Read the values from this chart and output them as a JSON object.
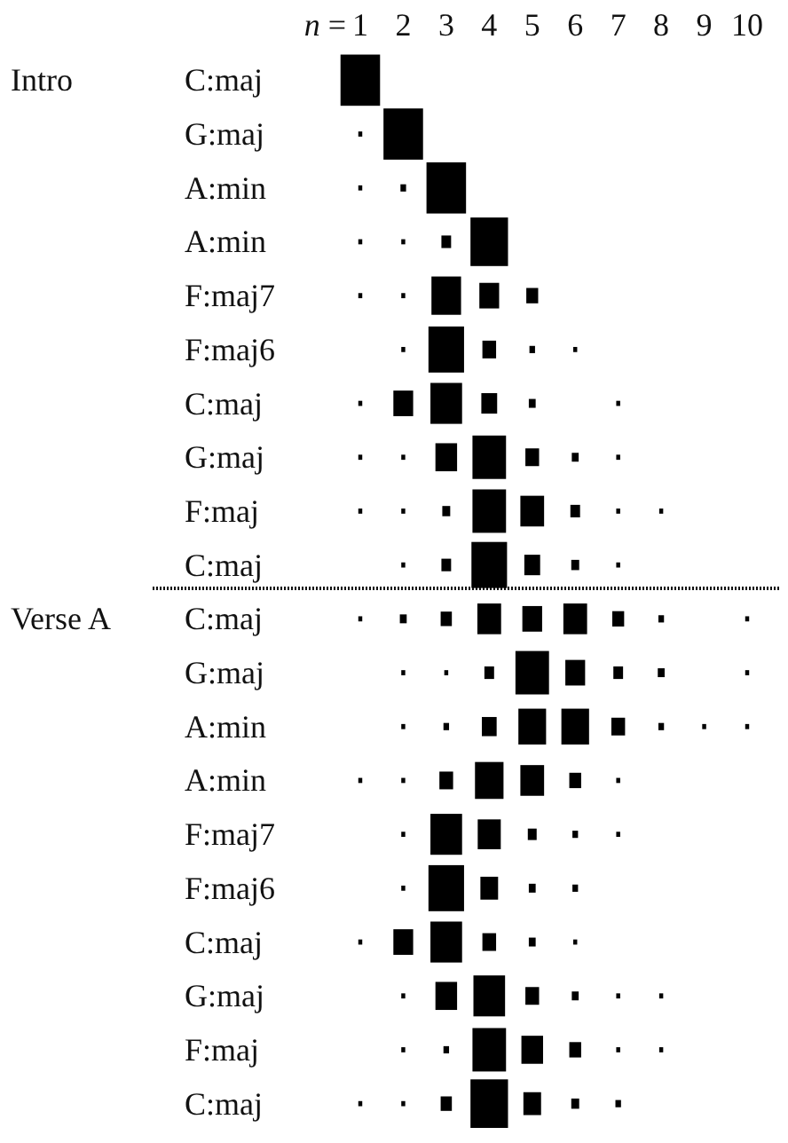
{
  "chart_data": {
    "type": "bubble",
    "orientation": "horizontal",
    "marker": "square",
    "xlabel": "n =",
    "xlim": [
      1,
      10
    ],
    "xticks": [
      1,
      2,
      3,
      4,
      5,
      6,
      7,
      8,
      9,
      10
    ],
    "categories": [
      "C:maj",
      "G:maj",
      "A:min",
      "A:min",
      "F:maj7",
      "F:maj6",
      "C:maj",
      "G:maj",
      "F:maj",
      "C:maj",
      "C:maj",
      "G:maj",
      "A:min",
      "A:min",
      "F:maj7",
      "F:maj6",
      "C:maj",
      "G:maj",
      "F:maj",
      "C:maj"
    ],
    "annotations": [
      "Intro",
      "Verse A"
    ],
    "series": [
      {
        "color": "#000000",
        "values": [
          1,
          1,
          1,
          1,
          1,
          null,
          1,
          1,
          1,
          null,
          1,
          null,
          null,
          1,
          null,
          null,
          1,
          null,
          null,
          1
        ],
        "sizes": [
          1,
          0.01,
          0.01,
          0.01,
          0.01,
          null,
          0.01,
          0.01,
          0.01,
          null,
          0.01,
          null,
          null,
          0.01,
          null,
          null,
          0.01,
          null,
          null,
          0.01
        ]
      },
      {
        "color": "#000000",
        "values": [
          null,
          2,
          2,
          2,
          2,
          2,
          2,
          2,
          2,
          2,
          2,
          2,
          2,
          2,
          2,
          2,
          2,
          2,
          2,
          2
        ],
        "sizes": [
          null,
          1,
          0.02,
          0.01,
          0.01,
          0.01,
          0.25,
          0.01,
          0.01,
          0.01,
          0.03,
          0.01,
          0.01,
          0.01,
          0.01,
          0.01,
          0.25,
          0.01,
          0.01,
          0.01
        ]
      },
      {
        "color": "#000000",
        "values": [
          null,
          null,
          3,
          3,
          3,
          3,
          3,
          3,
          3,
          3,
          3,
          3,
          3,
          3,
          3,
          3,
          3,
          3,
          3,
          3
        ],
        "sizes": [
          null,
          null,
          1,
          0.06,
          0.56,
          0.81,
          0.64,
          0.3,
          0.04,
          0.06,
          0.08,
          0.01,
          0.02,
          0.12,
          0.64,
          0.81,
          0.64,
          0.3,
          0.02,
          0.08
        ]
      },
      {
        "color": "#000000",
        "values": [
          null,
          null,
          null,
          4,
          4,
          4,
          4,
          4,
          4,
          4,
          4,
          4,
          4,
          4,
          4,
          4,
          4,
          4,
          4,
          4
        ],
        "sizes": [
          null,
          null,
          null,
          0.9,
          0.25,
          0.12,
          0.16,
          0.72,
          0.72,
          0.81,
          0.36,
          0.06,
          0.14,
          0.52,
          0.34,
          0.2,
          0.12,
          0.64,
          0.72,
          0.9
        ]
      },
      {
        "color": "#000000",
        "values": [
          null,
          null,
          null,
          null,
          5,
          5,
          5,
          5,
          5,
          5,
          5,
          5,
          5,
          5,
          5,
          5,
          5,
          5,
          5,
          5
        ],
        "sizes": [
          null,
          null,
          null,
          null,
          0.09,
          0.02,
          0.03,
          0.12,
          0.36,
          0.16,
          0.25,
          0.72,
          0.49,
          0.36,
          0.05,
          0.03,
          0.03,
          0.12,
          0.3,
          0.2
        ]
      },
      {
        "color": "#000000",
        "values": [
          null,
          null,
          null,
          null,
          null,
          6,
          null,
          6,
          6,
          6,
          6,
          6,
          6,
          6,
          6,
          6,
          6,
          6,
          6,
          6
        ],
        "sizes": [
          null,
          null,
          null,
          null,
          null,
          0.01,
          null,
          0.03,
          0.06,
          0.04,
          0.36,
          0.25,
          0.49,
          0.09,
          0.02,
          0.02,
          0.01,
          0.03,
          0.09,
          0.04
        ]
      },
      {
        "color": "#000000",
        "values": [
          null,
          null,
          null,
          null,
          null,
          null,
          7,
          7,
          7,
          7,
          7,
          7,
          7,
          7,
          7,
          null,
          null,
          7,
          7,
          7
        ],
        "sizes": [
          null,
          null,
          null,
          null,
          null,
          null,
          0.01,
          0.01,
          0.01,
          0.01,
          0.09,
          0.06,
          0.12,
          0.01,
          0.01,
          null,
          null,
          0.01,
          0.01,
          0.02
        ]
      },
      {
        "color": "#000000",
        "values": [
          null,
          null,
          null,
          null,
          null,
          null,
          null,
          null,
          8,
          null,
          8,
          8,
          8,
          null,
          null,
          null,
          null,
          8,
          8,
          null
        ],
        "sizes": [
          null,
          null,
          null,
          null,
          null,
          null,
          null,
          null,
          0.01,
          null,
          0.02,
          0.03,
          0.02,
          null,
          null,
          null,
          null,
          0.01,
          0.01,
          null
        ]
      },
      {
        "color": "#000000",
        "values": [
          null,
          null,
          null,
          null,
          null,
          null,
          null,
          null,
          null,
          null,
          null,
          null,
          9,
          null,
          null,
          null,
          null,
          null,
          null,
          null
        ],
        "sizes": [
          null,
          null,
          null,
          null,
          null,
          null,
          null,
          null,
          null,
          null,
          null,
          null,
          0.01,
          null,
          null,
          null,
          null,
          null,
          null,
          null
        ]
      },
      {
        "color": "#000000",
        "values": [
          null,
          null,
          null,
          null,
          null,
          null,
          null,
          null,
          null,
          null,
          10,
          10,
          10,
          null,
          null,
          null,
          null,
          null,
          null,
          null
        ],
        "sizes": [
          null,
          null,
          null,
          null,
          null,
          null,
          null,
          null,
          null,
          null,
          0.01,
          0.01,
          0.01,
          null,
          null,
          null,
          null,
          null,
          null,
          null
        ]
      }
    ]
  }
}
